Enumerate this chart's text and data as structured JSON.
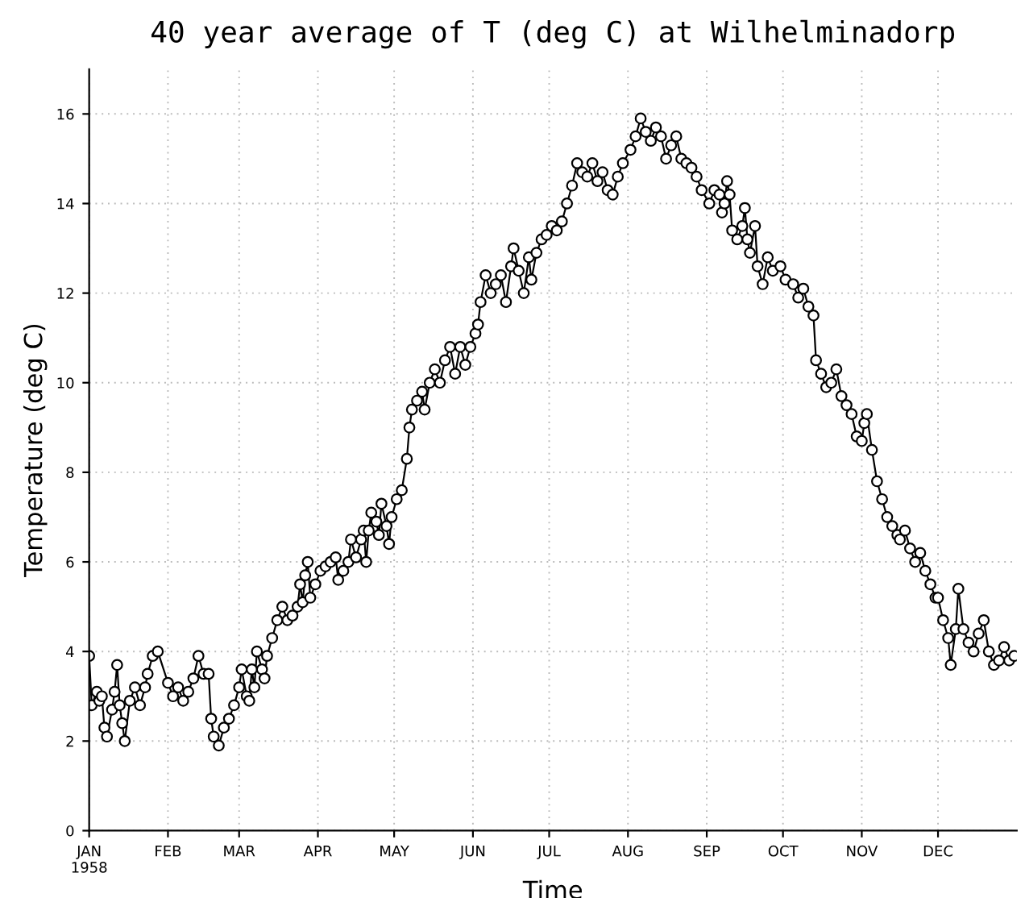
{
  "chart_data": {
    "type": "line",
    "title": "40 year average of T (deg C) at Wilhelminadorp",
    "xlabel": "Time",
    "ylabel": "Temperature (deg C)",
    "x": [
      "1958-01-01",
      "1958-01-02",
      "1958-01-04",
      "1958-01-05",
      "1958-01-06",
      "1958-01-07",
      "1958-01-08",
      "1958-01-10",
      "1958-01-11",
      "1958-01-12",
      "1958-01-13",
      "1958-01-14",
      "1958-01-15",
      "1958-01-17",
      "1958-01-19",
      "1958-01-21",
      "1958-01-23",
      "1958-01-24",
      "1958-01-26",
      "1958-01-28",
      "1958-02-01",
      "1958-02-03",
      "1958-02-05",
      "1958-02-07",
      "1958-02-09",
      "1958-02-11",
      "1958-02-13",
      "1958-02-15",
      "1958-02-17",
      "1958-02-18",
      "1958-02-19",
      "1958-02-21",
      "1958-02-23",
      "1958-02-25",
      "1958-02-27",
      "1958-03-01",
      "1958-03-02",
      "1958-03-04",
      "1958-03-05",
      "1958-03-06",
      "1958-03-07",
      "1958-03-08",
      "1958-03-10",
      "1958-03-11",
      "1958-03-12",
      "1958-03-14",
      "1958-03-16",
      "1958-03-18",
      "1958-03-20",
      "1958-03-22",
      "1958-03-24",
      "1958-03-25",
      "1958-03-26",
      "1958-03-27",
      "1958-03-28",
      "1958-03-29",
      "1958-03-31",
      "1958-04-02",
      "1958-04-04",
      "1958-04-06",
      "1958-04-08",
      "1958-04-09",
      "1958-04-11",
      "1958-04-13",
      "1958-04-14",
      "1958-04-16",
      "1958-04-18",
      "1958-04-19",
      "1958-04-20",
      "1958-04-21",
      "1958-04-22",
      "1958-04-24",
      "1958-04-25",
      "1958-04-26",
      "1958-04-28",
      "1958-04-29",
      "1958-04-30",
      "1958-05-02",
      "1958-05-04",
      "1958-05-06",
      "1958-05-07",
      "1958-05-08",
      "1958-05-10",
      "1958-05-12",
      "1958-05-13",
      "1958-05-15",
      "1958-05-17",
      "1958-05-19",
      "1958-05-21",
      "1958-05-23",
      "1958-05-25",
      "1958-05-27",
      "1958-05-29",
      "1958-05-31",
      "1958-06-02",
      "1958-06-03",
      "1958-06-04",
      "1958-06-06",
      "1958-06-08",
      "1958-06-10",
      "1958-06-12",
      "1958-06-14",
      "1958-06-16",
      "1958-06-17",
      "1958-06-19",
      "1958-06-21",
      "1958-06-23",
      "1958-06-24",
      "1958-06-26",
      "1958-06-28",
      "1958-06-30",
      "1958-07-02",
      "1958-07-04",
      "1958-07-06",
      "1958-07-08",
      "1958-07-10",
      "1958-07-12",
      "1958-07-14",
      "1958-07-16",
      "1958-07-18",
      "1958-07-20",
      "1958-07-22",
      "1958-07-24",
      "1958-07-26",
      "1958-07-28",
      "1958-07-30",
      "1958-08-02",
      "1958-08-04",
      "1958-08-06",
      "1958-08-08",
      "1958-08-10",
      "1958-08-12",
      "1958-08-14",
      "1958-08-16",
      "1958-08-18",
      "1958-08-20",
      "1958-08-22",
      "1958-08-24",
      "1958-08-26",
      "1958-08-28",
      "1958-08-30",
      "1958-09-02",
      "1958-09-04",
      "1958-09-06",
      "1958-09-07",
      "1958-09-08",
      "1958-09-09",
      "1958-09-10",
      "1958-09-11",
      "1958-09-13",
      "1958-09-15",
      "1958-09-16",
      "1958-09-17",
      "1958-09-18",
      "1958-09-20",
      "1958-09-21",
      "1958-09-23",
      "1958-09-25",
      "1958-09-27",
      "1958-09-30",
      "1958-10-02",
      "1958-10-05",
      "1958-10-07",
      "1958-10-09",
      "1958-10-11",
      "1958-10-13",
      "1958-10-14",
      "1958-10-16",
      "1958-10-18",
      "1958-10-20",
      "1958-10-22",
      "1958-10-24",
      "1958-10-26",
      "1958-10-28",
      "1958-10-30",
      "1958-11-01",
      "1958-11-02",
      "1958-11-03",
      "1958-11-05",
      "1958-11-07",
      "1958-11-09",
      "1958-11-11",
      "1958-11-13",
      "1958-11-15",
      "1958-11-16",
      "1958-11-18",
      "1958-11-20",
      "1958-11-22",
      "1958-11-24",
      "1958-11-26",
      "1958-11-28",
      "1958-11-30",
      "1958-12-01",
      "1958-12-03",
      "1958-12-05",
      "1958-12-06",
      "1958-12-08",
      "1958-12-09",
      "1958-12-11",
      "1958-12-13",
      "1958-12-15",
      "1958-12-17",
      "1958-12-19",
      "1958-12-21",
      "1958-12-23",
      "1958-12-25",
      "1958-12-27",
      "1958-12-29",
      "1958-12-31"
    ],
    "values": [
      3.9,
      2.8,
      3.1,
      2.9,
      3.0,
      2.3,
      2.1,
      2.7,
      3.1,
      3.7,
      2.8,
      2.4,
      2.0,
      2.9,
      3.2,
      2.8,
      3.2,
      3.5,
      3.9,
      4.0,
      3.3,
      3.0,
      3.2,
      2.9,
      3.1,
      3.4,
      3.9,
      3.5,
      3.5,
      2.5,
      2.1,
      1.9,
      2.3,
      2.5,
      2.8,
      3.2,
      3.6,
      3.0,
      2.9,
      3.6,
      3.2,
      4.0,
      3.6,
      3.4,
      3.9,
      4.3,
      4.7,
      5.0,
      4.7,
      4.8,
      5.0,
      5.5,
      5.1,
      5.7,
      6.0,
      5.2,
      5.5,
      5.8,
      5.9,
      6.0,
      6.1,
      5.6,
      5.8,
      6.0,
      6.5,
      6.1,
      6.5,
      6.7,
      6.0,
      6.7,
      7.1,
      6.9,
      6.6,
      7.3,
      6.8,
      6.4,
      7.0,
      7.4,
      7.6,
      8.3,
      9.0,
      9.4,
      9.6,
      9.8,
      9.4,
      10.0,
      10.3,
      10.0,
      10.5,
      10.8,
      10.2,
      10.8,
      10.4,
      10.8,
      11.1,
      11.3,
      11.8,
      12.4,
      12.0,
      12.2,
      12.4,
      11.8,
      12.6,
      13.0,
      12.5,
      12.0,
      12.8,
      12.3,
      12.9,
      13.2,
      13.3,
      13.5,
      13.4,
      13.6,
      14.0,
      14.4,
      14.9,
      14.7,
      14.6,
      14.9,
      14.5,
      14.7,
      14.3,
      14.2,
      14.6,
      14.9,
      15.2,
      15.5,
      15.9,
      15.6,
      15.4,
      15.7,
      15.5,
      15.0,
      15.3,
      15.5,
      15.0,
      14.9,
      14.8,
      14.6,
      14.3,
      14.0,
      14.3,
      14.2,
      13.8,
      14.0,
      14.5,
      14.2,
      13.4,
      13.2,
      13.5,
      13.9,
      13.2,
      12.9,
      13.5,
      12.6,
      12.2,
      12.8,
      12.5,
      12.6,
      12.3,
      12.2,
      11.9,
      12.1,
      11.7,
      11.5,
      10.5,
      10.2,
      9.9,
      10.0,
      10.3,
      9.7,
      9.5,
      9.3,
      8.8,
      8.7,
      9.1,
      9.3,
      8.5,
      7.8,
      7.4,
      7.0,
      6.8,
      6.6,
      6.5,
      6.7,
      6.3,
      6.0,
      6.2,
      5.8,
      5.5,
      5.2,
      5.2,
      4.7,
      4.3,
      3.7,
      4.5,
      5.4,
      4.5,
      4.2,
      4.0,
      4.4,
      4.7,
      4.0,
      3.7,
      3.8,
      4.1,
      3.8,
      3.9
    ],
    "color": "#000000",
    "marker": "circle",
    "line_style": "solid",
    "grid": true,
    "legend": false,
    "xlim": [
      "1958-01-01",
      "1959-01-01"
    ],
    "xticks": [
      {
        "value": "1958-01-01",
        "label": "JAN\n1958"
      },
      {
        "value": "1958-02-01",
        "label": "FEB"
      },
      {
        "value": "1958-03-01",
        "label": "MAR"
      },
      {
        "value": "1958-04-01",
        "label": "APR"
      },
      {
        "value": "1958-05-01",
        "label": "MAY"
      },
      {
        "value": "1958-06-01",
        "label": "JUN"
      },
      {
        "value": "1958-07-01",
        "label": "JUL"
      },
      {
        "value": "1958-08-01",
        "label": "AUG"
      },
      {
        "value": "1958-09-01",
        "label": "SEP"
      },
      {
        "value": "1958-10-01",
        "label": "OCT"
      },
      {
        "value": "1958-11-01",
        "label": "NOV"
      },
      {
        "value": "1958-12-01",
        "label": "DEC"
      }
    ],
    "ylim": [
      0,
      17
    ],
    "yticks": [
      0,
      2,
      4,
      6,
      8,
      10,
      12,
      14,
      16
    ]
  }
}
